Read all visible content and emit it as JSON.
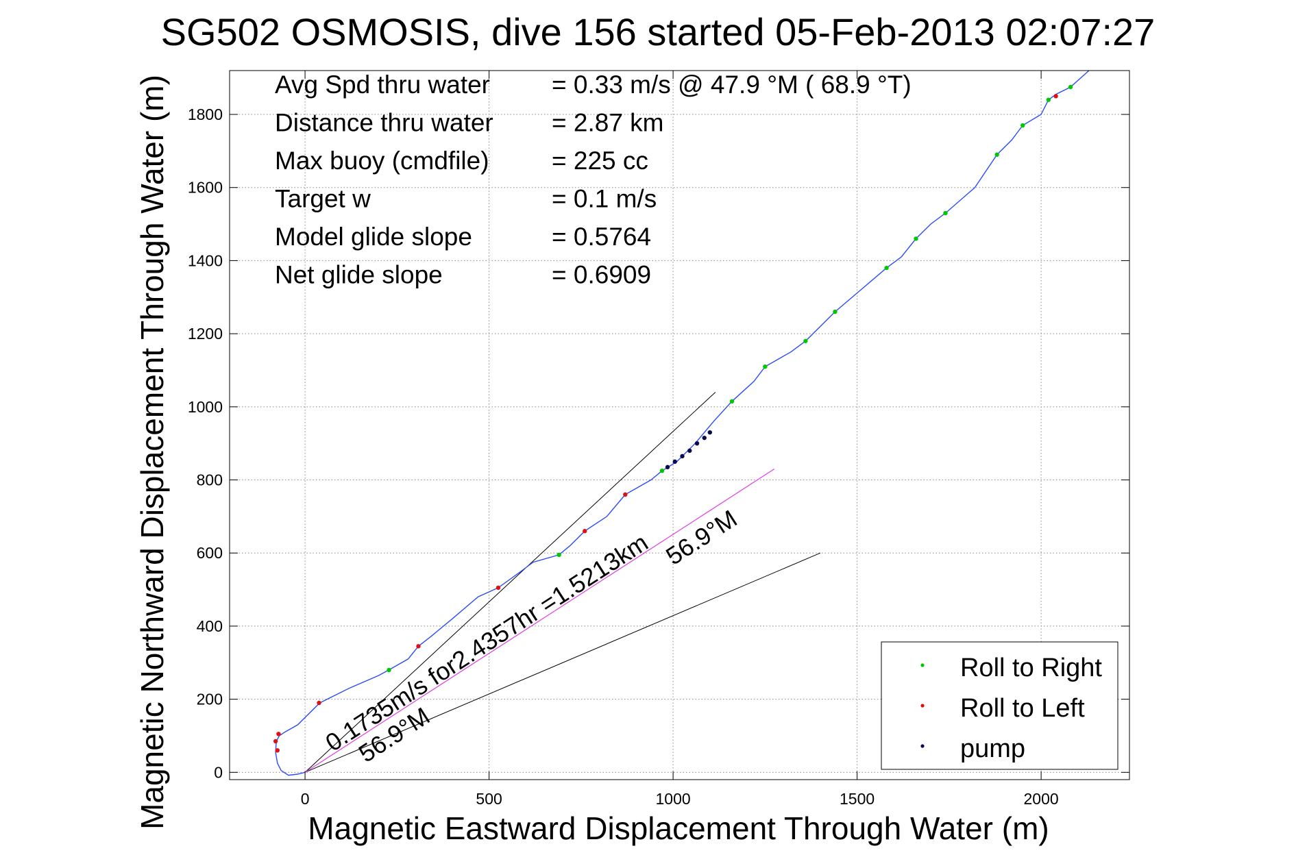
{
  "chart_data": {
    "type": "scatter",
    "title": "SG502 OSMOSIS, dive 156 started 05-Feb-2013 02:07:27",
    "xlabel": "Magnetic Eastward Displacement Through Water (m)",
    "ylabel": "Magnetic Northward Displacement Through Water (m)",
    "xlim": [
      -205,
      2240
    ],
    "ylim": [
      -20,
      1920
    ],
    "xticks": [
      0,
      500,
      1000,
      1500,
      2000
    ],
    "yticks": [
      0,
      200,
      400,
      600,
      800,
      1000,
      1200,
      1400,
      1600,
      1800
    ],
    "grid": true,
    "legend_position": "bottom-right",
    "colors": {
      "track": "#2a4bff",
      "roll_right": "#00c800",
      "roll_left": "#e01010",
      "pump": "#0a0a50",
      "current_line": "#e040e0",
      "axes": "#000000",
      "grid": "#888888"
    },
    "stats": [
      {
        "label": "Avg Spd thru water",
        "value": "=  0.33 m/s @  47.9 °M ( 68.9 °T)"
      },
      {
        "label": "Distance thru water",
        "value": "=  2.87 km"
      },
      {
        "label": "Max buoy (cmdfile)",
        "value": "= 225 cc"
      },
      {
        "label": "Target w",
        "value": "= 0.1 m/s"
      },
      {
        "label": "Model glide slope",
        "value": "= 0.5764"
      },
      {
        "label": "Net glide slope",
        "value": "= 0.6909"
      }
    ],
    "annotations": {
      "current_label": "0.1735m/s for2.4357hr =1.5213km",
      "current_heading_end": "56.9°M",
      "current_heading_start": "56.9°M"
    },
    "series": [
      {
        "name": "Roll to Right",
        "x": [
          228,
          690,
          970,
          1160,
          1250,
          1360,
          1440,
          1580,
          1660,
          1740,
          1880,
          1950,
          2020,
          2080
        ],
        "y": [
          280,
          595,
          825,
          1015,
          1110,
          1180,
          1260,
          1380,
          1460,
          1530,
          1690,
          1770,
          1840,
          1875
        ]
      },
      {
        "name": "Roll to Left",
        "x": [
          -75,
          -80,
          -72,
          38,
          308,
          525,
          760,
          870,
          2040
        ],
        "y": [
          60,
          85,
          105,
          190,
          345,
          505,
          660,
          760,
          1850
        ]
      },
      {
        "name": "pump",
        "x": [
          985,
          1005,
          1025,
          1045,
          1065,
          1085,
          1100
        ],
        "y": [
          835,
          850,
          865,
          880,
          900,
          915,
          930
        ]
      }
    ],
    "track": {
      "x": [
        0,
        -20,
        -45,
        -65,
        -75,
        -80,
        -78,
        -70,
        -55,
        -20,
        40,
        120,
        200,
        228,
        280,
        308,
        340,
        400,
        470,
        525,
        580,
        620,
        690,
        720,
        760,
        820,
        870,
        940,
        970,
        1010,
        1060,
        1110,
        1160,
        1220,
        1250,
        1320,
        1360,
        1400,
        1440,
        1510,
        1580,
        1620,
        1660,
        1700,
        1740,
        1820,
        1880,
        1920,
        1950,
        2000,
        2020,
        2040,
        2080,
        2130
      ],
      "y": [
        0,
        -5,
        -8,
        5,
        25,
        55,
        85,
        100,
        110,
        130,
        190,
        230,
        265,
        280,
        310,
        345,
        370,
        420,
        480,
        505,
        545,
        575,
        595,
        620,
        660,
        700,
        760,
        800,
        825,
        850,
        900,
        960,
        1015,
        1070,
        1110,
        1150,
        1180,
        1220,
        1260,
        1320,
        1380,
        1410,
        1460,
        1500,
        1530,
        1600,
        1690,
        1730,
        1770,
        1800,
        1840,
        1855,
        1875,
        1920
      ]
    },
    "current_vector": {
      "x": [
        0,
        1275
      ],
      "y": [
        0,
        830
      ]
    },
    "heading_lines": [
      {
        "x": [
          0,
          1115
        ],
        "y": [
          0,
          1040
        ]
      },
      {
        "x": [
          0,
          1400
        ],
        "y": [
          0,
          600
        ]
      }
    ],
    "legend": [
      "Roll to Right",
      "Roll to Left",
      "pump"
    ]
  }
}
